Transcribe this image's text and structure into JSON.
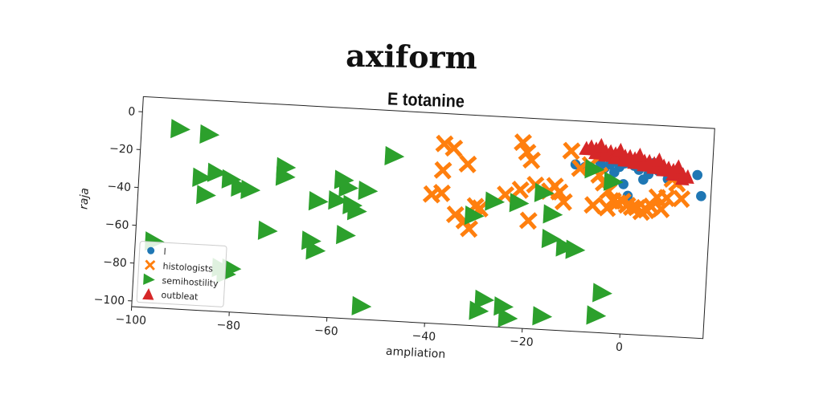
{
  "title": "axiform",
  "subtitle": "E totanine",
  "chart_data": {
    "type": "scatter",
    "xlabel": "ampliation",
    "ylabel": "raja",
    "xlim": [
      -100,
      17
    ],
    "ylim": [
      -103,
      8
    ],
    "xticks": [
      -100,
      -80,
      -60,
      -40,
      -20,
      0
    ],
    "yticks": [
      0,
      -20,
      -40,
      -60,
      -80,
      -100
    ],
    "xtick_labels": [
      "−100",
      "−80",
      "−60",
      "−40",
      "−20",
      "0"
    ],
    "ytick_labels": [
      "0",
      "−20",
      "−40",
      "−60",
      "−80",
      "−100"
    ],
    "grid": false,
    "legend_position": "lower-left",
    "series": [
      {
        "name": "l",
        "marker": "circle",
        "color": "#1f77b4",
        "points": [
          [
            -11,
            -15
          ],
          [
            -9,
            -16
          ],
          [
            -6,
            -13
          ],
          [
            -5,
            -16
          ],
          [
            -4,
            -14
          ],
          [
            -3,
            -12
          ],
          [
            -2,
            -15
          ],
          [
            -1,
            -13
          ],
          [
            0,
            -11
          ],
          [
            1,
            -14
          ],
          [
            2,
            -16
          ],
          [
            3,
            -13
          ],
          [
            4,
            -18
          ],
          [
            5,
            -12
          ],
          [
            6,
            -16
          ],
          [
            7,
            -15
          ],
          [
            8,
            -20
          ],
          [
            9,
            -17
          ],
          [
            10,
            -15
          ],
          [
            -1,
            -24
          ],
          [
            3,
            -21
          ],
          [
            14,
            -17
          ],
          [
            15,
            -28
          ],
          [
            0,
            -30
          ],
          [
            -3,
            -18
          ]
        ]
      },
      {
        "name": "histologists",
        "marker": "x",
        "color": "#ff7f0e",
        "points": [
          [
            -38,
            -8
          ],
          [
            -36,
            -10
          ],
          [
            -33,
            -18
          ],
          [
            -38,
            -22
          ],
          [
            -40,
            -35
          ],
          [
            -38,
            -34
          ],
          [
            -35,
            -45
          ],
          [
            -33,
            -48
          ],
          [
            -32,
            -52
          ],
          [
            -31,
            -40
          ],
          [
            -30,
            -41
          ],
          [
            -22,
            -5
          ],
          [
            -21,
            -10
          ],
          [
            -20,
            -14
          ],
          [
            -19,
            -27
          ],
          [
            -20,
            -46
          ],
          [
            -16,
            -30
          ],
          [
            -15,
            -27
          ],
          [
            -14,
            -30
          ],
          [
            -13,
            -35
          ],
          [
            -12,
            -8
          ],
          [
            -10,
            -17
          ],
          [
            -8,
            -15
          ],
          [
            -6,
            -20
          ],
          [
            -5,
            -24
          ],
          [
            -4,
            -28
          ],
          [
            -4,
            -37
          ],
          [
            -3,
            -33
          ],
          [
            -2,
            -34
          ],
          [
            -1,
            -33
          ],
          [
            0,
            -35
          ],
          [
            1,
            -36
          ],
          [
            2,
            -36
          ],
          [
            3,
            -38
          ],
          [
            4,
            -37
          ],
          [
            5,
            -35
          ],
          [
            6,
            -30
          ],
          [
            7,
            -36
          ],
          [
            8,
            -30
          ],
          [
            9,
            -20
          ],
          [
            10,
            -22
          ],
          [
            11,
            -30
          ],
          [
            -22,
            -30
          ],
          [
            -25,
            -33
          ],
          [
            -7,
            -36
          ]
        ]
      },
      {
        "name": "semihostility",
        "marker": "triangle-right",
        "color": "#2ca02c",
        "points": [
          [
            -92,
            -8
          ],
          [
            -86,
            -10
          ],
          [
            -87,
            -33
          ],
          [
            -86,
            -42
          ],
          [
            -84,
            -30
          ],
          [
            -81,
            -33
          ],
          [
            -79,
            -37
          ],
          [
            -77,
            -38
          ],
          [
            -70,
            -25
          ],
          [
            -70,
            -30
          ],
          [
            -63,
            -42
          ],
          [
            -59,
            -41
          ],
          [
            -58,
            -30
          ],
          [
            -57,
            -34
          ],
          [
            -56,
            -43
          ],
          [
            -55,
            -46
          ],
          [
            -53,
            -35
          ],
          [
            -48,
            -16
          ],
          [
            -73,
            -59
          ],
          [
            -64,
            -63
          ],
          [
            -63,
            -68
          ],
          [
            -57,
            -59
          ],
          [
            -96,
            -68
          ],
          [
            -82,
            -80
          ],
          [
            -81,
            -83
          ],
          [
            -53,
            -96
          ],
          [
            -31,
            -45
          ],
          [
            -27,
            -37
          ],
          [
            -22,
            -37
          ],
          [
            -17,
            -31
          ],
          [
            -15,
            -42
          ],
          [
            -12,
            -59
          ],
          [
            -10,
            -60
          ],
          [
            -7,
            -17
          ],
          [
            -4,
            -82
          ],
          [
            -5,
            -94
          ],
          [
            -3,
            -23
          ],
          [
            -28,
            -89
          ],
          [
            -29,
            -95
          ],
          [
            -24,
            -92
          ],
          [
            -23,
            -98
          ],
          [
            -16,
            -96
          ],
          [
            -15,
            -55
          ],
          [
            -80,
            -80
          ]
        ]
      },
      {
        "name": "outbleat",
        "marker": "triangle-up",
        "color": "#d62728",
        "points": [
          [
            -9,
            -6
          ],
          [
            -8,
            -5
          ],
          [
            -7,
            -6
          ],
          [
            -6,
            -6
          ],
          [
            -5,
            -7
          ],
          [
            -4,
            -7
          ],
          [
            -3,
            -8
          ],
          [
            -2,
            -8
          ],
          [
            -1,
            -9
          ],
          [
            0,
            -9
          ],
          [
            1,
            -10
          ],
          [
            2,
            -10
          ],
          [
            3,
            -11
          ],
          [
            4,
            -11
          ],
          [
            5,
            -12
          ],
          [
            6,
            -12
          ],
          [
            7,
            -13
          ],
          [
            8,
            -14
          ],
          [
            9,
            -15
          ],
          [
            10,
            -16
          ],
          [
            11,
            -17
          ],
          [
            12,
            -18
          ],
          [
            -7,
            -8
          ],
          [
            -5,
            -9
          ],
          [
            -3,
            -10
          ],
          [
            -1,
            -11
          ],
          [
            1,
            -12
          ],
          [
            3,
            -13
          ],
          [
            5,
            -14
          ],
          [
            7,
            -15
          ],
          [
            9,
            -17
          ],
          [
            11,
            -19
          ],
          [
            -6,
            -4
          ],
          [
            -2,
            -6
          ],
          [
            2,
            -8
          ],
          [
            6,
            -10
          ],
          [
            10,
            -13
          ]
        ]
      }
    ]
  }
}
